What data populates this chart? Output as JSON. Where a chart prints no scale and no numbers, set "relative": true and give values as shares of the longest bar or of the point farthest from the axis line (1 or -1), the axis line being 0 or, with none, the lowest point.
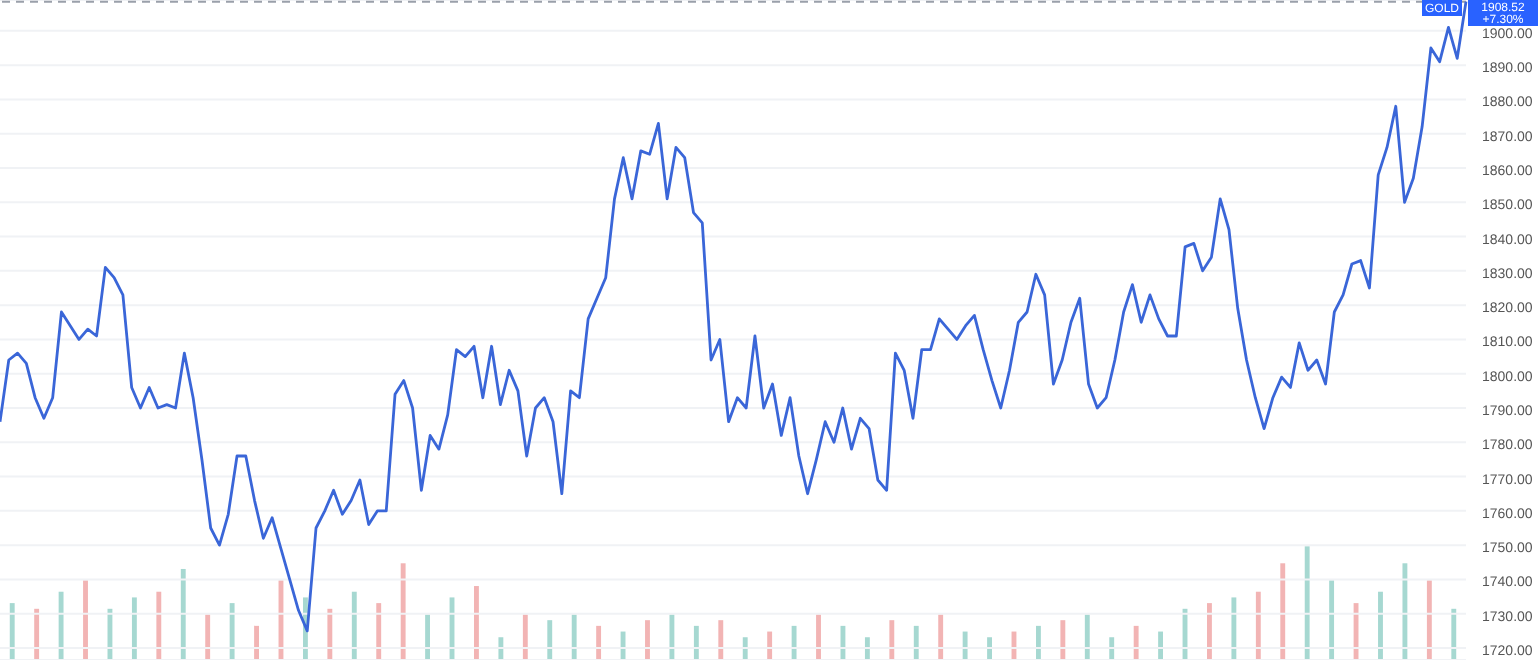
{
  "chart_data": [
    {
      "type": "line",
      "categories": [
        null,
        null,
        null,
        null,
        null,
        null,
        null,
        null,
        null,
        null,
        null,
        null,
        null,
        null,
        null,
        null,
        null,
        null,
        null,
        null,
        null,
        null,
        null,
        null,
        null,
        null,
        null,
        null,
        null,
        null,
        null,
        null,
        null,
        null,
        null,
        null,
        null,
        null,
        null,
        null,
        null,
        null,
        null,
        null,
        null,
        null,
        null,
        null,
        null,
        null,
        null,
        null,
        null,
        null,
        null,
        null,
        null,
        null,
        null,
        null,
        null,
        null,
        null,
        null,
        null,
        null,
        null,
        null,
        null,
        null,
        null,
        null,
        null,
        null,
        null,
        null,
        null,
        null,
        null,
        null,
        null,
        null,
        null,
        null,
        null,
        null,
        null,
        null,
        null,
        null,
        null,
        null,
        null,
        null,
        null,
        null,
        null,
        null,
        null,
        null,
        null,
        null,
        null,
        null,
        null,
        null,
        null,
        null,
        null,
        null,
        null,
        null,
        null,
        null,
        null,
        null,
        null,
        null,
        null,
        null,
        null,
        null,
        null,
        null,
        null,
        null,
        null,
        null,
        null,
        null,
        null,
        null,
        null,
        null,
        null,
        null,
        null,
        null,
        null,
        null,
        null,
        null,
        null,
        null,
        null,
        null,
        null,
        null,
        null,
        null,
        null,
        null,
        null,
        null,
        null,
        null,
        null,
        null,
        null,
        null,
        null,
        null,
        null,
        null,
        null,
        null,
        null,
        null
      ],
      "series": [
        {
          "color": "#3a66d8",
          "values": [
            1786,
            1804,
            1806,
            1803,
            1793,
            1787,
            1793,
            1818,
            1814,
            1810,
            1813,
            1811,
            1831,
            1828,
            1823,
            1796,
            1790,
            1796,
            1790,
            1791,
            1790,
            1806,
            1793,
            1775,
            1755,
            1750,
            1759,
            1776,
            1776,
            1763,
            1752,
            1758,
            1749,
            1740,
            1731,
            1725,
            1755,
            1760,
            1766,
            1759,
            1763,
            1769,
            1756,
            1760,
            1760,
            1794,
            1798,
            1790,
            1766,
            1782,
            1778,
            1788,
            1807,
            1805,
            1808,
            1793,
            1808,
            1791,
            1801,
            1795,
            1776,
            1790,
            1793,
            1786,
            1765,
            1795,
            1793,
            1816,
            1822,
            1828,
            1851,
            1863,
            1851,
            1865,
            1864,
            1873,
            1851,
            1866,
            1863,
            1847,
            1844,
            1804,
            1810,
            1786,
            1793,
            1790,
            1811,
            1790,
            1797,
            1782,
            1793,
            1776,
            1765,
            1775,
            1786,
            1780,
            1790,
            1778,
            1787,
            1784,
            1769,
            1766,
            1806,
            1801,
            1787,
            1807,
            1807,
            1816,
            1813,
            1810,
            1814,
            1817,
            1807,
            1798,
            1790,
            1801,
            1815,
            1818,
            1829,
            1823,
            1797,
            1804,
            1815,
            1822,
            1797,
            1790,
            1793,
            1804,
            1818,
            1826,
            1815,
            1823,
            1816,
            1811,
            1811,
            1837,
            1838,
            1830,
            1834,
            1851,
            1842,
            1819,
            1804,
            1793,
            1784,
            1793,
            1799,
            1796,
            1809,
            1801,
            1804,
            1797,
            1818,
            1823,
            1832,
            1833,
            1825,
            1858,
            1866,
            1878,
            1850,
            1857,
            1872,
            1895,
            1891,
            1901,
            1892,
            1908.52
          ]
        }
      ],
      "ylim": [
        1716.5,
        1909
      ],
      "yticks": [
        {
          "value": 1720,
          "label": "1720.00"
        },
        {
          "value": 1730,
          "label": "1730.00"
        },
        {
          "value": 1740,
          "label": "1740.00"
        },
        {
          "value": 1750,
          "label": "1750.00"
        },
        {
          "value": 1760,
          "label": "1760.00"
        },
        {
          "value": 1770,
          "label": "1770.00"
        },
        {
          "value": 1780,
          "label": "1780.00"
        },
        {
          "value": 1790,
          "label": "1790.00"
        },
        {
          "value": 1800,
          "label": "1800.00"
        },
        {
          "value": 1810,
          "label": "1810.00"
        },
        {
          "value": 1820,
          "label": "1820.00"
        },
        {
          "value": 1830,
          "label": "1830.00"
        },
        {
          "value": 1840,
          "label": "1840.00"
        },
        {
          "value": 1850,
          "label": "1850.00"
        },
        {
          "value": 1860,
          "label": "1860.00"
        },
        {
          "value": 1870,
          "label": "1870.00"
        },
        {
          "value": 1880,
          "label": "1880.00"
        },
        {
          "value": 1890,
          "label": "1890.00"
        },
        {
          "value": 1900,
          "label": "1900.00"
        }
      ],
      "tick_labels": "y",
      "grid": "y",
      "marker": "none",
      "line_style": "solid",
      "legend": false,
      "ref_lines": [
        {
          "axis": "y",
          "value": 1908.52,
          "label": "1908.52",
          "color": "#9aa0aa",
          "line_style": "dashed"
        }
      ],
      "annotations": [
        "GOLD",
        "+7.30%"
      ]
    },
    {
      "type": "bar",
      "relative": true,
      "tick_labels": false,
      "legend": false,
      "categories": [
        null,
        null,
        null,
        null,
        null,
        null,
        null,
        null,
        null,
        null,
        null,
        null,
        null,
        null,
        null,
        null,
        null,
        null,
        null,
        null,
        null,
        null,
        null,
        null,
        null,
        null,
        null,
        null,
        null,
        null,
        null,
        null,
        null,
        null,
        null,
        null,
        null,
        null,
        null,
        null,
        null,
        null,
        null,
        null,
        null,
        null,
        null,
        null,
        null,
        null,
        null,
        null,
        null,
        null,
        null,
        null,
        null,
        null,
        null,
        null
      ],
      "values": [
        0.5,
        0.45,
        0.6,
        0.7,
        0.45,
        0.55,
        0.6,
        0.8,
        0.4,
        0.5,
        0.3,
        0.7,
        0.55,
        0.45,
        0.6,
        0.5,
        0.85,
        0.4,
        0.55,
        0.65,
        0.2,
        0.4,
        0.35,
        0.4,
        0.3,
        0.25,
        0.35,
        0.4,
        0.3,
        0.35,
        0.2,
        0.25,
        0.3,
        0.4,
        0.3,
        0.2,
        0.35,
        0.3,
        0.4,
        0.25,
        0.2,
        0.25,
        0.3,
        0.35,
        0.4,
        0.2,
        0.3,
        0.25,
        0.45,
        0.5,
        0.55,
        0.6,
        0.85,
        1,
        0.7,
        0.5,
        0.6,
        0.85,
        0.7,
        0.45
      ],
      "colors": [
        "#a6d8d1",
        "#f2b4b4",
        "#a6d8d1",
        "#f2b4b4",
        "#a6d8d1",
        "#a6d8d1",
        "#f2b4b4",
        "#a6d8d1",
        "#f2b4b4",
        "#a6d8d1",
        "#f2b4b4",
        "#f2b4b4",
        "#a6d8d1",
        "#f2b4b4",
        "#a6d8d1",
        "#f2b4b4",
        "#f2b4b4",
        "#a6d8d1",
        "#a6d8d1",
        "#f2b4b4",
        "#a6d8d1",
        "#f2b4b4",
        "#a6d8d1",
        "#a6d8d1",
        "#f2b4b4",
        "#a6d8d1",
        "#f2b4b4",
        "#a6d8d1",
        "#a6d8d1",
        "#f2b4b4",
        "#a6d8d1",
        "#f2b4b4",
        "#a6d8d1",
        "#f2b4b4",
        "#a6d8d1",
        "#a6d8d1",
        "#f2b4b4",
        "#a6d8d1",
        "#f2b4b4",
        "#a6d8d1",
        "#a6d8d1",
        "#f2b4b4",
        "#a6d8d1",
        "#f2b4b4",
        "#a6d8d1",
        "#a6d8d1",
        "#f2b4b4",
        "#a6d8d1",
        "#a6d8d1",
        "#f2b4b4",
        "#a6d8d1",
        "#f2b4b4",
        "#f2b4b4",
        "#a6d8d1",
        "#a6d8d1",
        "#f2b4b4",
        "#a6d8d1",
        "#a6d8d1",
        "#f2b4b4",
        "#a6d8d1"
      ]
    }
  ]
}
